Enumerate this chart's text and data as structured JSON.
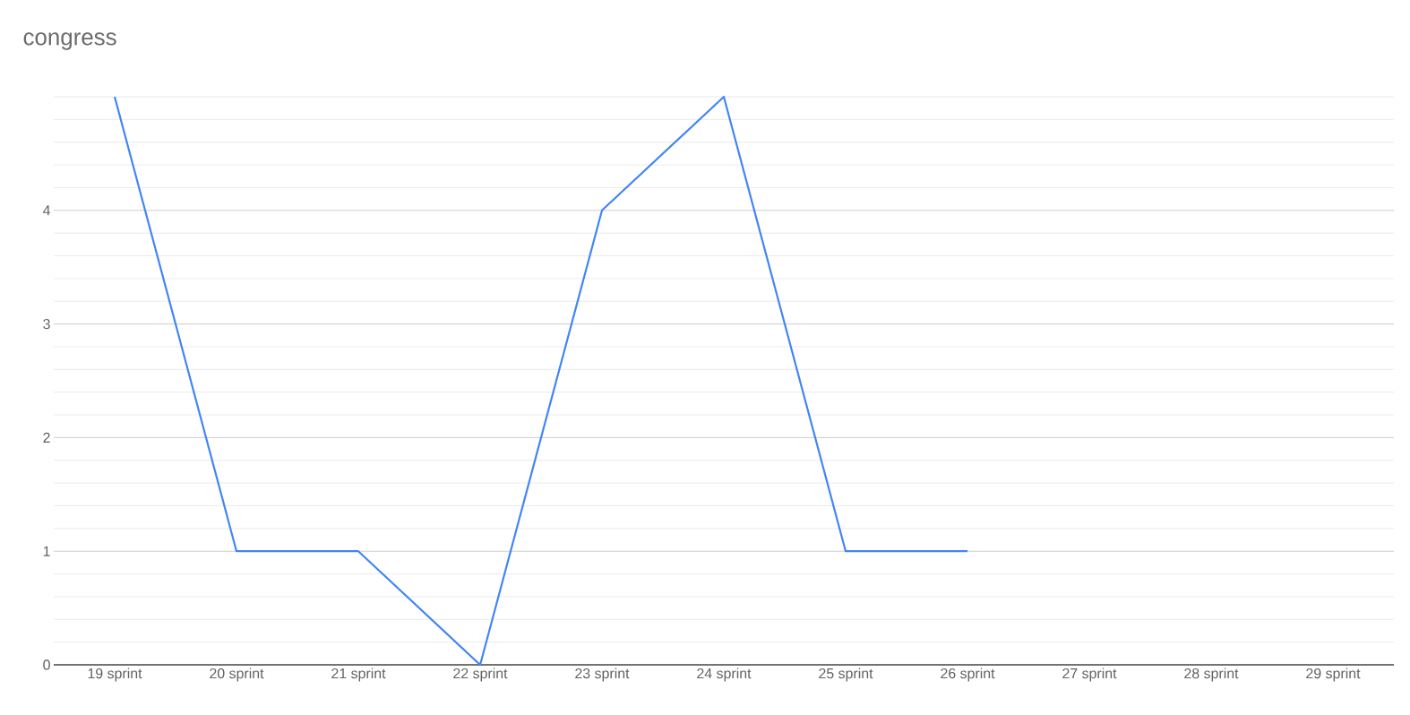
{
  "chart_data": {
    "type": "line",
    "title": "congress",
    "categories": [
      "19 sprint",
      "20 sprint",
      "21 sprint",
      "22 sprint",
      "23 sprint",
      "24 sprint",
      "25 sprint",
      "26 sprint",
      "27 sprint",
      "28 sprint",
      "29 sprint"
    ],
    "series": [
      {
        "color": "#4285f4",
        "values": [
          5,
          1,
          1,
          0,
          4,
          5,
          1,
          1,
          null,
          null,
          null
        ]
      }
    ],
    "yticks": [
      0,
      {
        "value": 0.2,
        "label": null
      },
      {
        "value": 0.4,
        "label": null
      },
      {
        "value": 0.6,
        "label": null
      },
      {
        "value": 0.8,
        "label": null
      },
      1,
      {
        "value": 1.2,
        "label": null
      },
      {
        "value": 1.4,
        "label": null
      },
      {
        "value": 1.6,
        "label": null
      },
      {
        "value": 1.8,
        "label": null
      },
      2,
      {
        "value": 2.2,
        "label": null
      },
      {
        "value": 2.4,
        "label": null
      },
      {
        "value": 2.6,
        "label": null
      },
      {
        "value": 2.8,
        "label": null
      },
      3,
      {
        "value": 3.2,
        "label": null
      },
      {
        "value": 3.4,
        "label": null
      },
      {
        "value": 3.6,
        "label": null
      },
      {
        "value": 3.8,
        "label": null
      },
      4,
      {
        "value": 4.2,
        "label": null
      },
      {
        "value": 4.4,
        "label": null
      },
      {
        "value": 4.6,
        "label": null
      },
      {
        "value": 4.8,
        "label": null
      },
      {
        "value": 5,
        "label": null
      }
    ],
    "ylim": [
      0,
      5
    ],
    "grid": "y",
    "marker": "none",
    "line_style": "solid"
  }
}
